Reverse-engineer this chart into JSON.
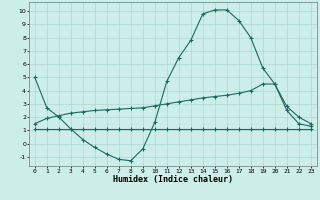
{
  "xlabel": "Humidex (Indice chaleur)",
  "ylabel": "",
  "background_color": "#cceee8",
  "grid_color": "#aad8d0",
  "line_color": "#1a6b5e",
  "x_ticks": [
    0,
    1,
    2,
    3,
    4,
    5,
    6,
    7,
    8,
    9,
    10,
    11,
    12,
    13,
    14,
    15,
    16,
    17,
    18,
    19,
    20,
    21,
    22,
    23
  ],
  "y_ticks": [
    -1,
    0,
    1,
    2,
    3,
    4,
    5,
    6,
    7,
    8,
    9,
    10
  ],
  "ylim": [
    -1.7,
    10.7
  ],
  "xlim": [
    -0.5,
    23.5
  ],
  "line1_x": [
    0,
    1,
    2,
    3,
    4,
    5,
    6,
    7,
    8,
    9,
    10,
    11,
    12,
    13,
    14,
    15,
    16,
    17,
    18,
    19,
    20,
    21,
    22,
    23
  ],
  "line1_y": [
    5.0,
    2.7,
    2.0,
    1.1,
    0.3,
    -0.3,
    -0.8,
    -1.2,
    -1.3,
    -0.4,
    1.6,
    4.7,
    6.5,
    7.8,
    9.8,
    10.1,
    10.1,
    9.3,
    8.0,
    5.7,
    4.5,
    2.5,
    1.5,
    1.3
  ],
  "line2_x": [
    0,
    1,
    2,
    3,
    4,
    5,
    6,
    7,
    8,
    9,
    10,
    11,
    12,
    13,
    14,
    15,
    16,
    17,
    18,
    19,
    20,
    21,
    22,
    23
  ],
  "line2_y": [
    1.1,
    1.1,
    1.1,
    1.1,
    1.1,
    1.1,
    1.1,
    1.1,
    1.1,
    1.1,
    1.1,
    1.1,
    1.1,
    1.1,
    1.1,
    1.1,
    1.1,
    1.1,
    1.1,
    1.1,
    1.1,
    1.1,
    1.1,
    1.1
  ],
  "line3_x": [
    0,
    1,
    2,
    3,
    4,
    5,
    6,
    7,
    8,
    9,
    10,
    11,
    12,
    13,
    14,
    15,
    16,
    17,
    18,
    19,
    20,
    21,
    22,
    23
  ],
  "line3_y": [
    1.5,
    1.9,
    2.1,
    2.3,
    2.4,
    2.5,
    2.55,
    2.6,
    2.65,
    2.7,
    2.85,
    3.0,
    3.15,
    3.3,
    3.45,
    3.55,
    3.65,
    3.8,
    4.0,
    4.5,
    4.5,
    2.8,
    2.0,
    1.5
  ]
}
